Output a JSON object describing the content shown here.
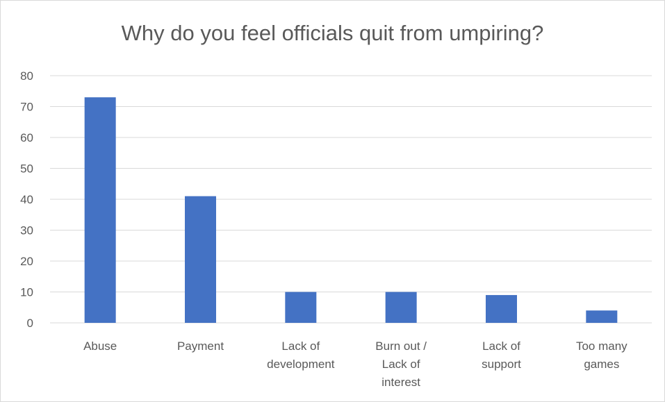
{
  "chart_data": {
    "type": "bar",
    "title": "Why do you feel officials quit from umpiring?",
    "categories": [
      "Abuse",
      "Payment",
      "Lack of development",
      "Burn out / Lack of interest",
      "Lack of support",
      "Too many games"
    ],
    "category_label_lines": [
      [
        "Abuse"
      ],
      [
        "Payment"
      ],
      [
        "Lack of",
        "development"
      ],
      [
        "Burn out /",
        "Lack of",
        "interest"
      ],
      [
        "Lack of",
        "support"
      ],
      [
        "Too many",
        "games"
      ]
    ],
    "values": [
      73,
      41,
      10,
      10,
      9,
      4
    ],
    "ylim": [
      0,
      80
    ],
    "yticks": [
      0,
      10,
      20,
      30,
      40,
      50,
      60,
      70,
      80
    ],
    "grid": true,
    "legend": "none",
    "bar_color": "#4472c4",
    "grid_color": "#d9d9d9",
    "text_color": "#595959"
  }
}
